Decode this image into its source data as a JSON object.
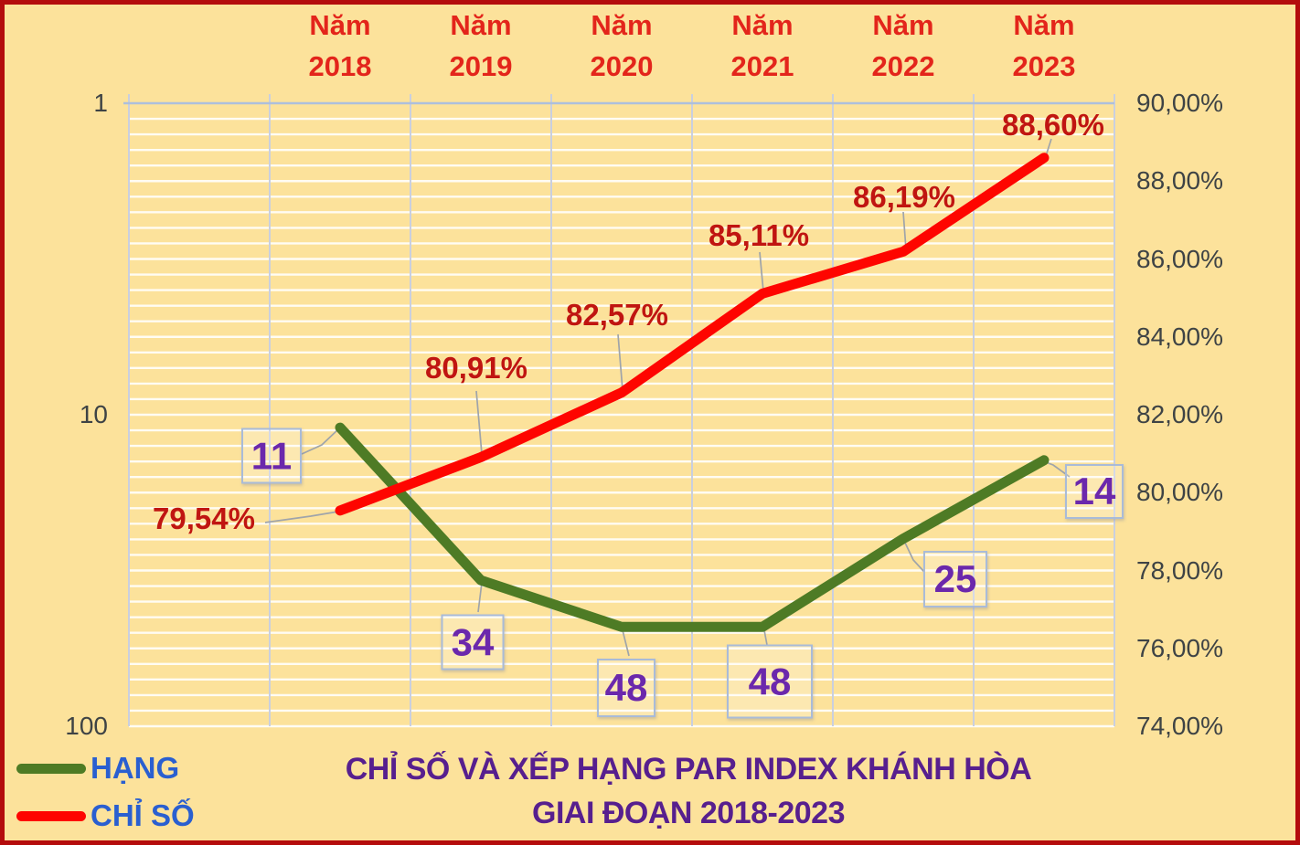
{
  "chart_data": {
    "type": "line",
    "title": "CHỈ SỐ VÀ XẾP HẠNG PAR INDEX KHÁNH HÒA",
    "subtitle": "GIAI ĐOẠN 2018-2023",
    "categories": [
      "Năm 2018",
      "Năm 2019",
      "Năm 2020",
      "Năm 2021",
      "Năm 2022",
      "Năm 2023"
    ],
    "series": [
      {
        "name": "HẠNG",
        "axis": "left",
        "color": "#4E7B25",
        "values": [
          11,
          34,
          48,
          48,
          25,
          14
        ],
        "labels": [
          "11",
          "34",
          "48",
          "48",
          "25",
          "14"
        ]
      },
      {
        "name": "CHỈ SỐ",
        "axis": "right",
        "color": "#FE0500",
        "values": [
          79.54,
          80.91,
          82.57,
          85.11,
          86.19,
          88.6
        ],
        "labels": [
          "79,54%",
          "80,91%",
          "82,57%",
          "85,11%",
          "86,19%",
          "88,60%"
        ]
      }
    ],
    "left_axis": {
      "scale": "log",
      "inverted": true,
      "min": 1,
      "max": 100,
      "tick_labels": [
        "1",
        "10",
        "100"
      ]
    },
    "right_axis": {
      "min": 74,
      "max": 90,
      "minor_step": 0.4,
      "tick_labels": [
        "90,00%",
        "88,00%",
        "86,00%",
        "84,00%",
        "82,00%",
        "80,00%",
        "78,00%",
        "76,00%",
        "74,00%"
      ]
    },
    "legend_position": "bottom-left",
    "grid": true,
    "x_labels_position": "top"
  },
  "colors": {
    "background": "#FCE29B",
    "border": "#B40C0C",
    "category_label": "#E3251B",
    "value_label_index": "#C01511",
    "value_label_rank": "#6B28AC",
    "axis_tick": "#3E4345",
    "title": "#571F8E",
    "legend_text": "#2A5FD0",
    "gridline_h": "#FFFFFF",
    "gridline_v": "#C9CFDF",
    "axis_line": "#AEBFDC",
    "leader_line": "#9FA4AA"
  }
}
